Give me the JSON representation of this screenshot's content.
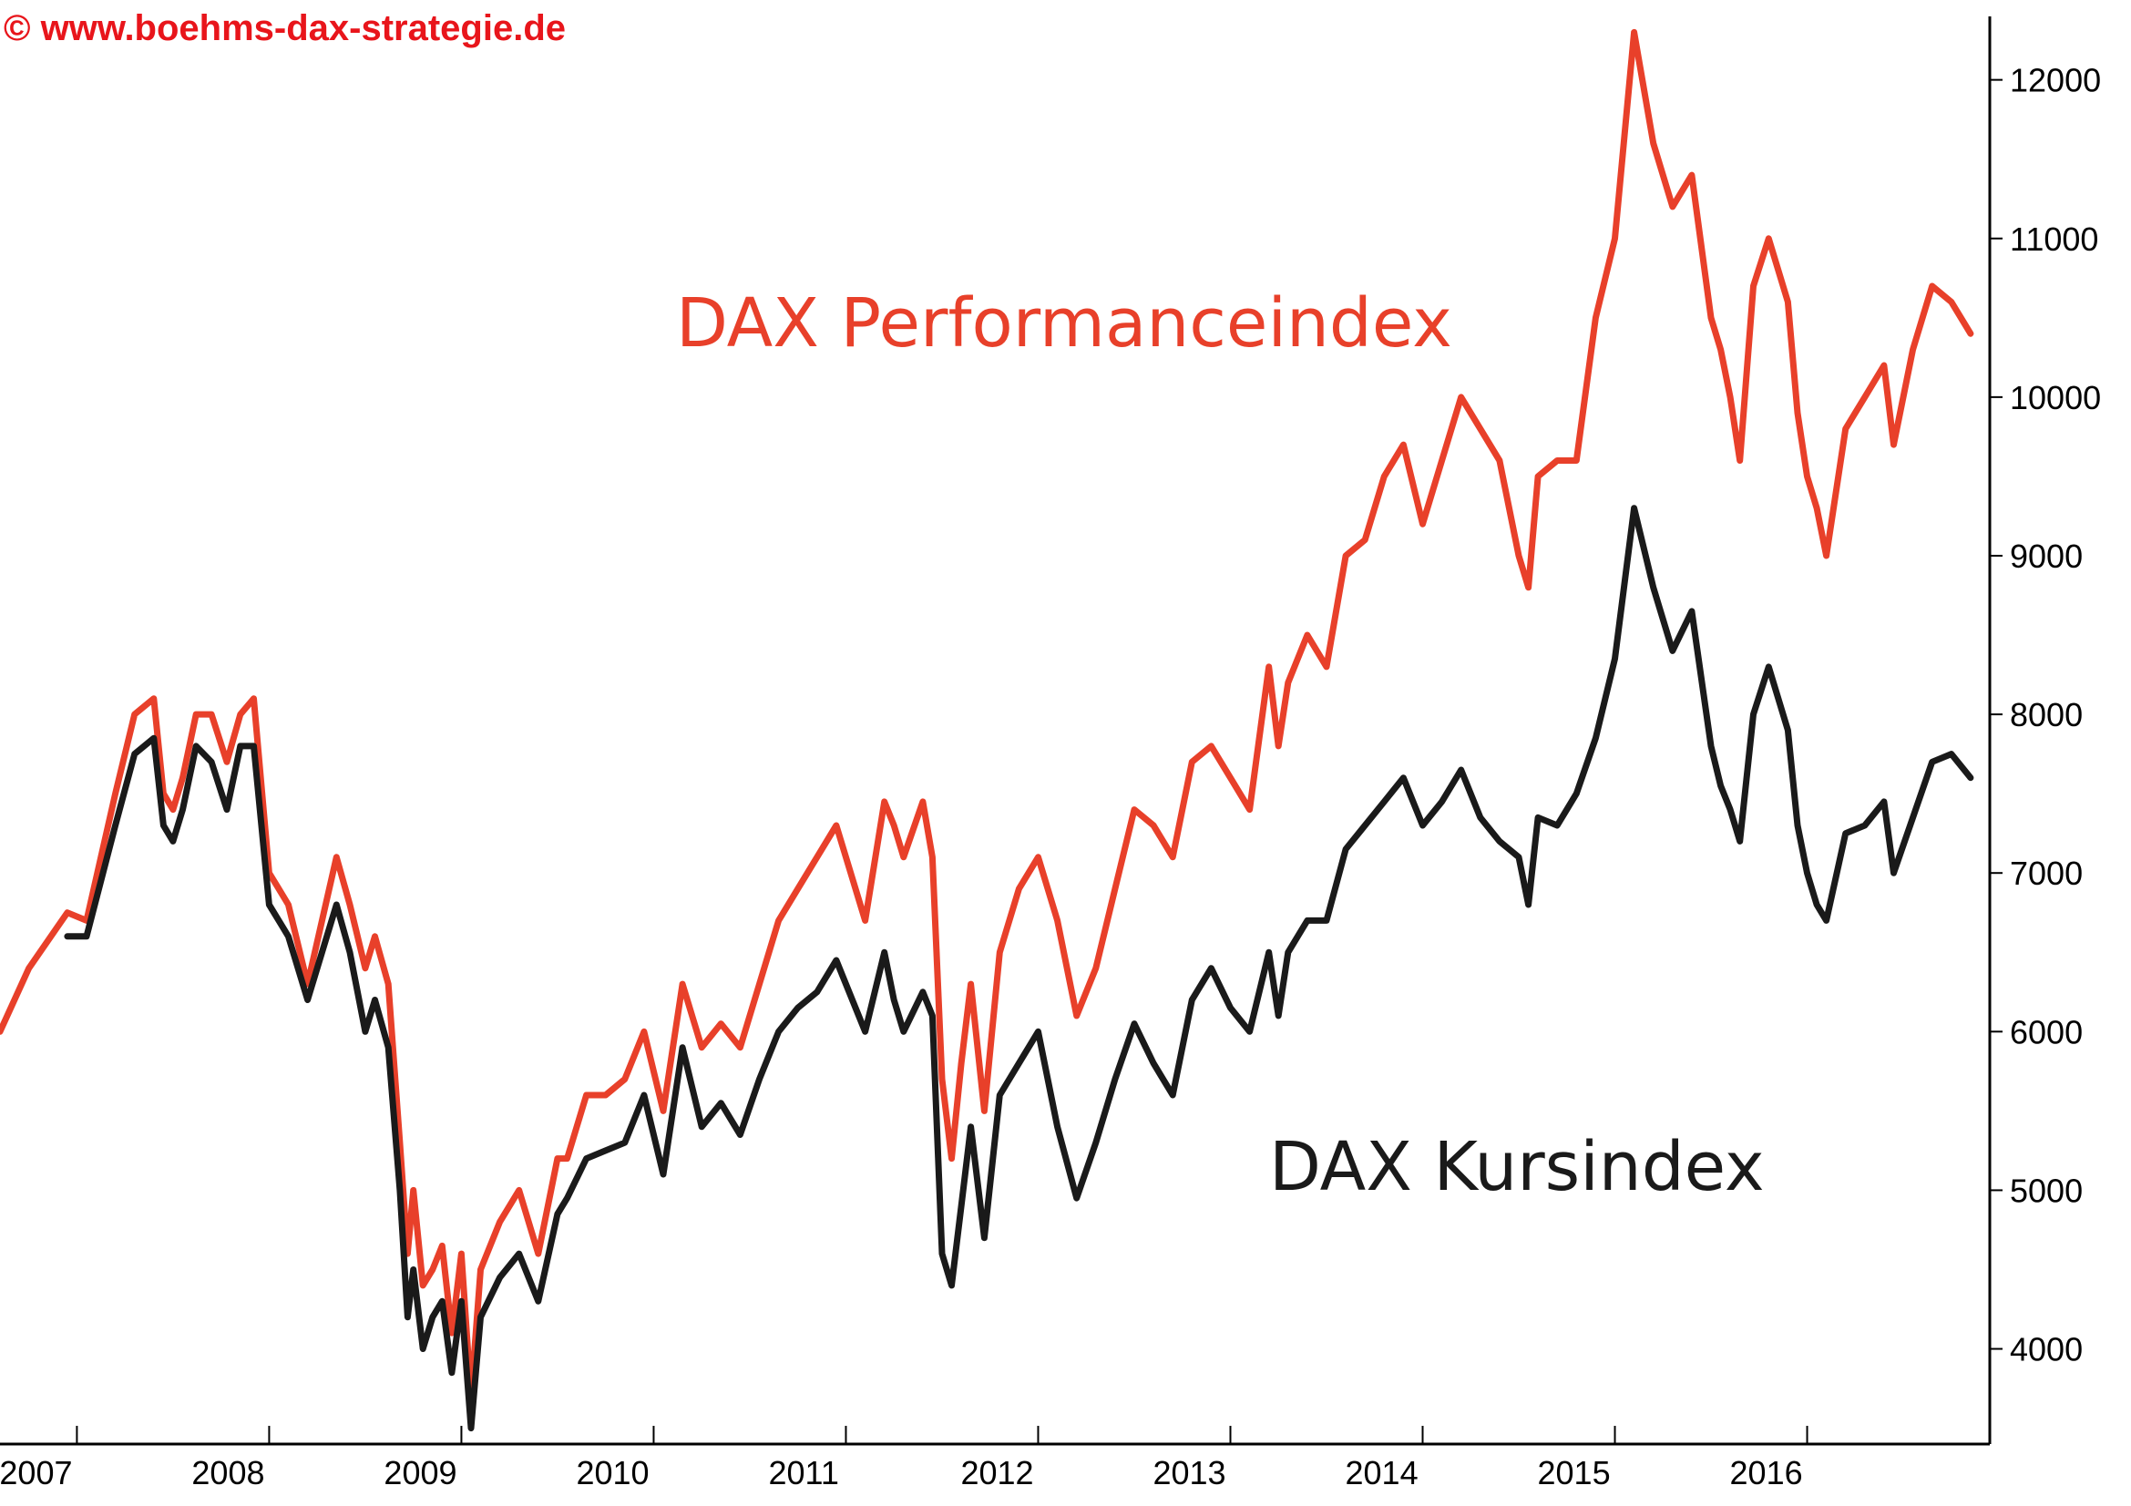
{
  "watermark": "© www.boehms-dax-strategie.de",
  "colors": {
    "performance": "#e8402a",
    "kurs": "#1a1a1a",
    "watermark": "#e8151b",
    "axis": "#000000"
  },
  "chart_data": {
    "type": "line",
    "title": "",
    "xlabel": "",
    "ylabel": "",
    "xlim": [
      2006.6,
      2016.95
    ],
    "ylim": [
      3400,
      12400
    ],
    "yticks": [
      4000,
      5000,
      6000,
      7000,
      8000,
      9000,
      10000,
      11000,
      12000
    ],
    "xticks": [
      2007,
      2008,
      2009,
      2010,
      2011,
      2012,
      2013,
      2014,
      2015,
      2016
    ],
    "grid": false,
    "series": [
      {
        "name": "DAX Performanceindex",
        "color": "#e8402a",
        "x": [
          2006.6,
          2006.75,
          2006.95,
          2007.05,
          2007.2,
          2007.3,
          2007.4,
          2007.45,
          2007.5,
          2007.55,
          2007.62,
          2007.7,
          2007.78,
          2007.85,
          2007.92,
          2008.0,
          2008.05,
          2008.1,
          2008.2,
          2008.35,
          2008.42,
          2008.5,
          2008.55,
          2008.62,
          2008.68,
          2008.72,
          2008.75,
          2008.8,
          2008.85,
          2008.9,
          2008.95,
          2009.0,
          2009.05,
          2009.1,
          2009.2,
          2009.3,
          2009.4,
          2009.5,
          2009.55,
          2009.65,
          2009.75,
          2009.85,
          2009.95,
          2010.05,
          2010.15,
          2010.25,
          2010.35,
          2010.45,
          2010.55,
          2010.65,
          2010.75,
          2010.85,
          2010.95,
          2011.1,
          2011.2,
          2011.25,
          2011.3,
          2011.4,
          2011.45,
          2011.5,
          2011.55,
          2011.6,
          2011.65,
          2011.72,
          2011.8,
          2011.9,
          2012.0,
          2012.1,
          2012.2,
          2012.3,
          2012.4,
          2012.5,
          2012.6,
          2012.7,
          2012.8,
          2012.9,
          2013.0,
          2013.1,
          2013.2,
          2013.25,
          2013.3,
          2013.4,
          2013.5,
          2013.6,
          2013.7,
          2013.8,
          2013.9,
          2014.0,
          2014.1,
          2014.2,
          2014.3,
          2014.4,
          2014.5,
          2014.55,
          2014.6,
          2014.7,
          2014.8,
          2014.9,
          2015.0,
          2015.1,
          2015.2,
          2015.3,
          2015.4,
          2015.5,
          2015.55,
          2015.6,
          2015.65,
          2015.72,
          2015.8,
          2015.9,
          2015.95,
          2016.0,
          2016.05,
          2016.1,
          2016.2,
          2016.3,
          2016.4,
          2016.45,
          2016.55,
          2016.65,
          2016.75,
          2016.85
        ],
        "y": [
          6000,
          6400,
          6750,
          6700,
          7500,
          8000,
          8100,
          7500,
          7400,
          7600,
          8000,
          8000,
          7700,
          8000,
          8100,
          7000,
          6900,
          6800,
          6300,
          7100,
          6800,
          6400,
          6600,
          6300,
          5300,
          4600,
          5000,
          4400,
          4500,
          4650,
          4100,
          4600,
          3700,
          4500,
          4800,
          5000,
          4600,
          5200,
          5200,
          5600,
          5600,
          5700,
          6000,
          5500,
          6300,
          5900,
          6050,
          5900,
          6300,
          6700,
          6900,
          7100,
          7300,
          6700,
          7450,
          7300,
          7100,
          7450,
          7100,
          5700,
          5200,
          5800,
          6300,
          5500,
          6500,
          6900,
          7100,
          6700,
          6100,
          6400,
          6900,
          7400,
          7300,
          7100,
          7700,
          7800,
          7600,
          7400,
          8300,
          7800,
          8200,
          8500,
          8300,
          9000,
          9100,
          9500,
          9700,
          9200,
          9600,
          10000,
          9800,
          9600,
          9000,
          8800,
          9500,
          9600,
          9600,
          10500,
          11000,
          12300,
          11600,
          11200,
          11400,
          10500,
          10300,
          10000,
          9600,
          10700,
          11000,
          10600,
          9900,
          9500,
          9300,
          9000,
          9800,
          10000,
          10200,
          9700,
          10300,
          10700,
          10600,
          10400
        ]
      },
      {
        "name": "DAX Kursindex",
        "color": "#1a1a1a",
        "x": [
          2006.95,
          2007.05,
          2007.2,
          2007.3,
          2007.4,
          2007.45,
          2007.5,
          2007.55,
          2007.62,
          2007.7,
          2007.78,
          2007.85,
          2007.92,
          2008.0,
          2008.05,
          2008.1,
          2008.2,
          2008.35,
          2008.42,
          2008.5,
          2008.55,
          2008.62,
          2008.68,
          2008.72,
          2008.75,
          2008.8,
          2008.85,
          2008.9,
          2008.95,
          2009.0,
          2009.05,
          2009.1,
          2009.2,
          2009.3,
          2009.4,
          2009.5,
          2009.55,
          2009.65,
          2009.75,
          2009.85,
          2009.95,
          2010.05,
          2010.15,
          2010.25,
          2010.35,
          2010.45,
          2010.55,
          2010.65,
          2010.75,
          2010.85,
          2010.95,
          2011.1,
          2011.2,
          2011.25,
          2011.3,
          2011.4,
          2011.45,
          2011.5,
          2011.55,
          2011.6,
          2011.65,
          2011.72,
          2011.8,
          2011.9,
          2012.0,
          2012.1,
          2012.2,
          2012.3,
          2012.4,
          2012.5,
          2012.6,
          2012.7,
          2012.8,
          2012.9,
          2013.0,
          2013.1,
          2013.2,
          2013.25,
          2013.3,
          2013.4,
          2013.5,
          2013.6,
          2013.7,
          2013.8,
          2013.9,
          2014.0,
          2014.1,
          2014.2,
          2014.3,
          2014.4,
          2014.5,
          2014.55,
          2014.6,
          2014.7,
          2014.8,
          2014.9,
          2015.0,
          2015.1,
          2015.2,
          2015.3,
          2015.4,
          2015.5,
          2015.55,
          2015.6,
          2015.65,
          2015.72,
          2015.8,
          2015.9,
          2015.95,
          2016.0,
          2016.05,
          2016.1,
          2016.2,
          2016.3,
          2016.4,
          2016.45,
          2016.55,
          2016.65,
          2016.75,
          2016.85
        ],
        "y": [
          6600,
          6600,
          7300,
          7750,
          7850,
          7300,
          7200,
          7400,
          7800,
          7700,
          7400,
          7800,
          7800,
          6800,
          6700,
          6600,
          6200,
          6800,
          6500,
          6000,
          6200,
          5900,
          5000,
          4200,
          4500,
          4000,
          4200,
          4300,
          3850,
          4300,
          3500,
          4200,
          4450,
          4600,
          4300,
          4850,
          4950,
          5200,
          5250,
          5300,
          5600,
          5100,
          5900,
          5400,
          5550,
          5350,
          5700,
          6000,
          6150,
          6250,
          6450,
          6000,
          6500,
          6200,
          6000,
          6250,
          6100,
          4600,
          4400,
          4900,
          5400,
          4700,
          5600,
          5800,
          6000,
          5400,
          4950,
          5300,
          5700,
          6050,
          5800,
          5600,
          6200,
          6400,
          6150,
          6000,
          6500,
          6100,
          6500,
          6700,
          6700,
          7150,
          7300,
          7450,
          7600,
          7300,
          7450,
          7650,
          7350,
          7200,
          7100,
          6800,
          7350,
          7300,
          7500,
          7850,
          8350,
          9300,
          8800,
          8400,
          8650,
          7800,
          7550,
          7400,
          7200,
          8000,
          8300,
          7900,
          7300,
          7000,
          6800,
          6700,
          7250,
          7300,
          7450,
          7000,
          7350,
          7700,
          7750,
          7600
        ]
      }
    ],
    "annotations": [
      {
        "text": "DAX Performanceindex",
        "color": "#e8402a"
      },
      {
        "text": "DAX Kursindex",
        "color": "#1a1a1a"
      }
    ]
  }
}
